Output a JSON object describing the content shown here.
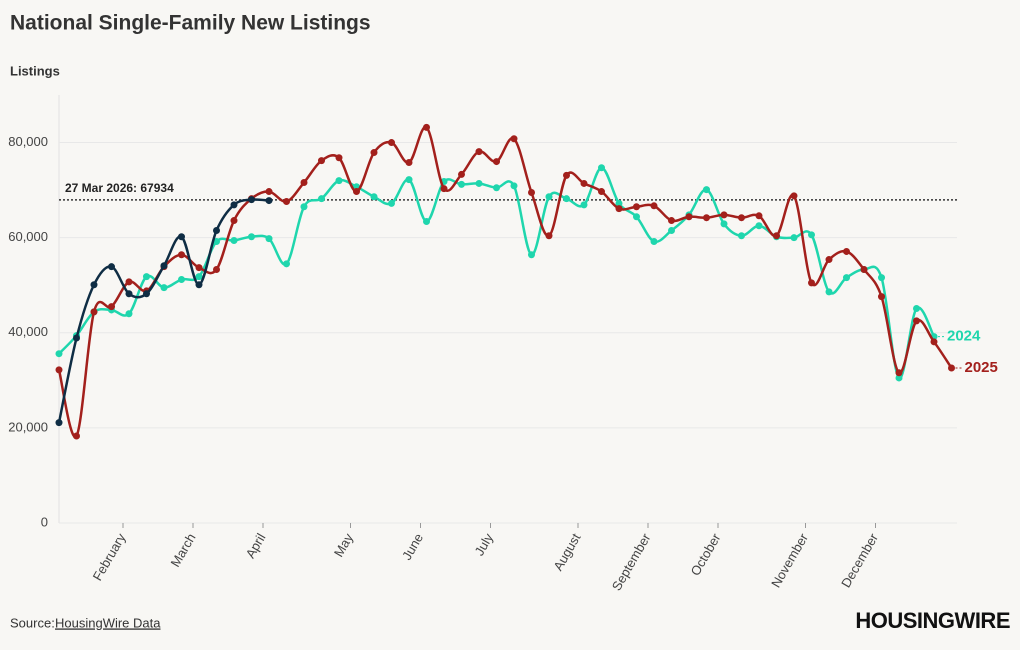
{
  "chart_data": {
    "type": "line",
    "title": "National Single-Family New Listings",
    "y_label": "Listings",
    "source_prefix": "Source:",
    "source_link": "HousingWire Data",
    "logo": "HOUSINGWIRE",
    "categories": [
      null,
      null,
      null,
      null,
      "February",
      null,
      null,
      null,
      "March",
      null,
      null,
      null,
      "April",
      null,
      null,
      null,
      null,
      "May",
      null,
      null,
      null,
      "June",
      null,
      null,
      null,
      "July",
      null,
      null,
      null,
      null,
      "August",
      null,
      null,
      null,
      "September",
      null,
      null,
      null,
      "October",
      null,
      null,
      null,
      null,
      "November",
      null,
      null,
      null,
      "December",
      null,
      null,
      null,
      null
    ],
    "series": [
      {
        "name": "2024",
        "color": "#1fd6ad",
        "values": [
          35600,
          39400,
          44400,
          44800,
          44000,
          51800,
          49500,
          51200,
          51800,
          59200,
          59400,
          60200,
          59800,
          54500,
          66500,
          68200,
          72000,
          70700,
          68600,
          67200,
          72200,
          63400,
          71800,
          71200,
          71400,
          70500,
          70900,
          56400,
          68600,
          68200,
          66900,
          74700,
          67200,
          64400,
          59200,
          61500,
          64800,
          70100,
          62900,
          60400,
          62500,
          60200,
          60000,
          60600,
          48600,
          51600,
          53300,
          51600,
          30500,
          45100,
          39200,
          null
        ]
      },
      {
        "name": "2025",
        "color": "#a3201c",
        "values": [
          32200,
          18300,
          44400,
          45500,
          50700,
          48800,
          53900,
          56400,
          53700,
          53300,
          63600,
          68200,
          69700,
          67600,
          71600,
          76200,
          76800,
          69700,
          77900,
          80000,
          75800,
          83200,
          70300,
          73300,
          78100,
          76000,
          80800,
          69500,
          60400,
          73100,
          71400,
          69700,
          66100,
          66500,
          66700,
          63600,
          64400,
          64200,
          64800,
          64200,
          64600,
          60400,
          68800,
          50500,
          55400,
          57100,
          53300,
          47600,
          31600,
          42500,
          38100,
          32600
        ]
      },
      {
        "color": "#0f2d44",
        "values": [
          21100,
          38900,
          50100,
          53900,
          48200,
          48200,
          54100,
          60200,
          50100,
          61500,
          66900,
          68000,
          67800,
          null,
          null,
          null,
          null,
          null,
          null,
          null,
          null,
          null,
          null,
          null,
          null,
          null,
          null,
          null,
          null,
          null,
          null,
          null,
          null,
          null,
          null,
          null,
          null,
          null,
          null,
          null,
          null,
          null,
          null,
          null,
          null,
          null,
          null,
          null,
          null,
          null,
          null,
          null
        ]
      }
    ],
    "reference_line": {
      "value": 67934,
      "label": "27 Mar 2026: 67934"
    },
    "ylim": [
      0,
      90000
    ],
    "yticks": [
      0,
      {
        "value": 20000,
        "label": "20,000"
      },
      {
        "value": 40000,
        "label": "40,000"
      },
      {
        "value": 60000,
        "label": "60,000"
      },
      {
        "value": 80000,
        "label": "80,000"
      }
    ],
    "grid": true
  }
}
